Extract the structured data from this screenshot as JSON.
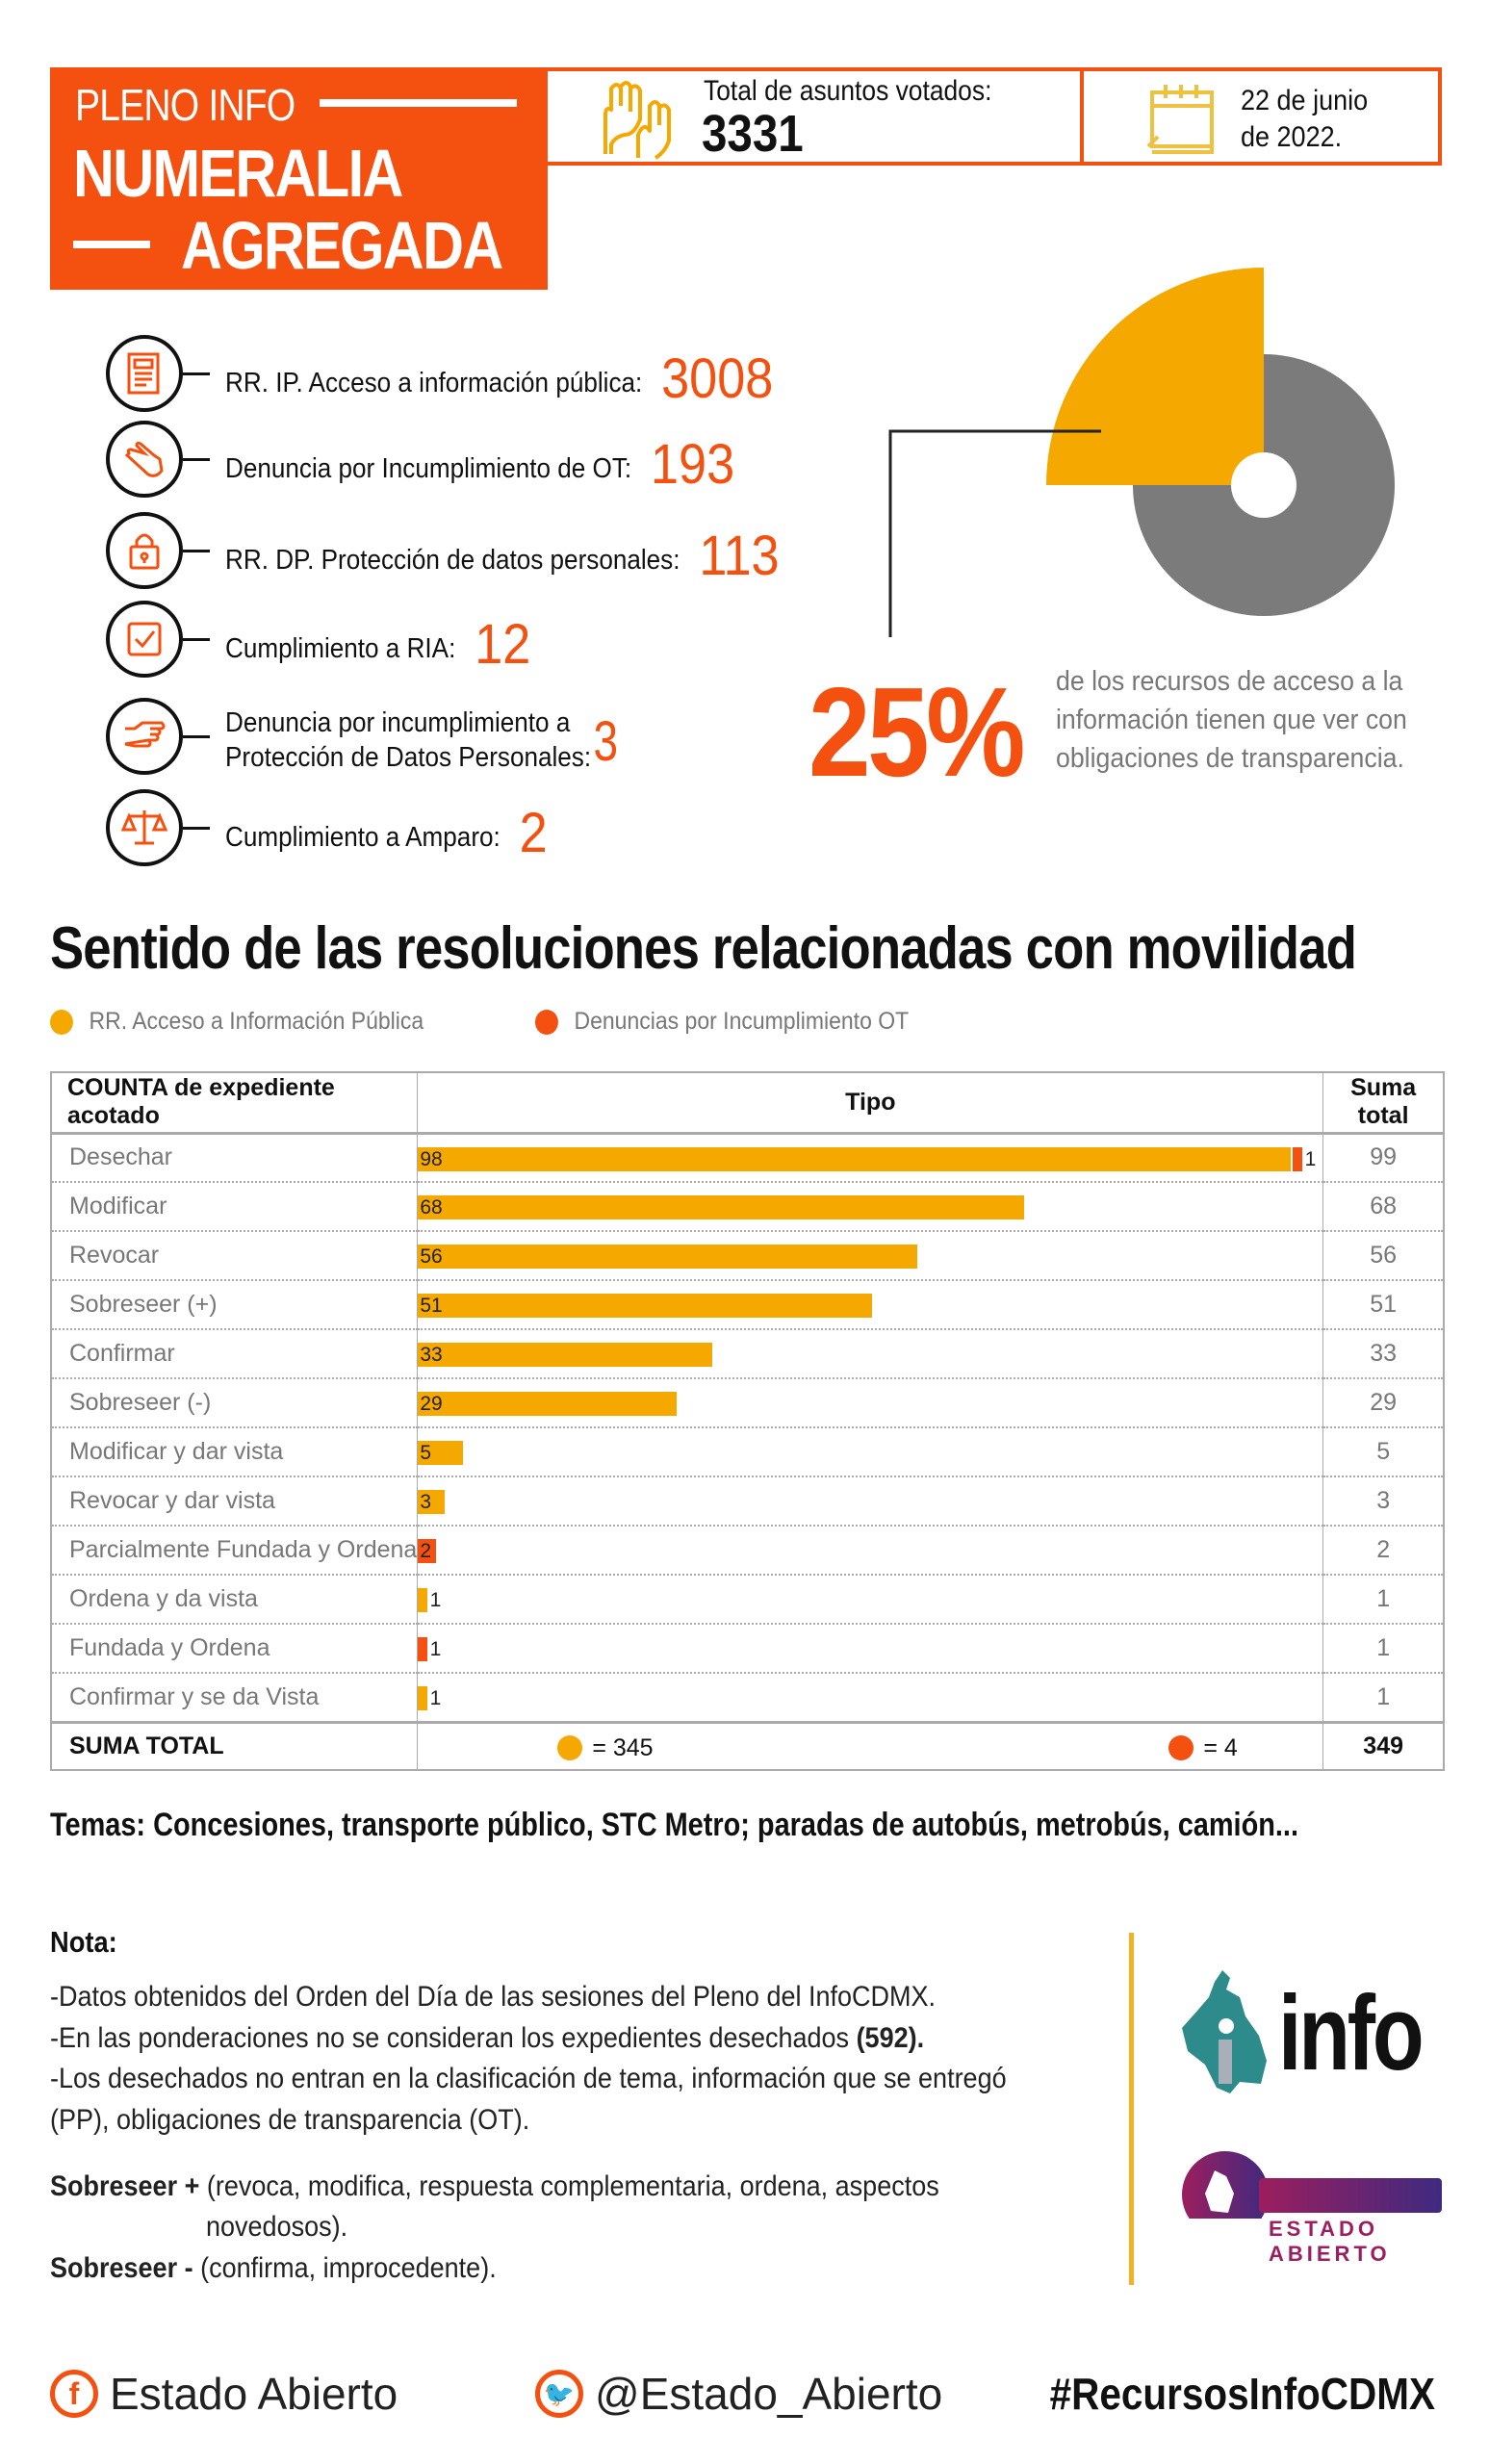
{
  "header": {
    "kicker": "PLENO INFO",
    "title_line1": "NUMERALIA",
    "title_line2": "AGREGADA",
    "total_label": "Total de asuntos votados:",
    "total_value": "3331",
    "date_line1": "22 de junio",
    "date_line2": "de 2022."
  },
  "items": [
    {
      "icon": "document-icon",
      "label": "RR. IP.  Acceso a información pública:",
      "value": "3008"
    },
    {
      "icon": "pointing-hand-icon",
      "label": "Denuncia por Incumplimiento de OT:",
      "value": "193"
    },
    {
      "icon": "lock-icon",
      "label": "RR. DP. Protección de datos personales:",
      "value": "113"
    },
    {
      "icon": "checkbox-icon",
      "label": "Cumplimiento a RIA:",
      "value": "12"
    },
    {
      "icon": "hand-point-icon",
      "label_line1": "Denuncia por incumplimiento a",
      "label_line2": "Protección de Datos Personales:",
      "value": "3"
    },
    {
      "icon": "scales-icon",
      "label": "Cumplimiento a Amparo:",
      "value": "2"
    }
  ],
  "highlight": {
    "percent": "25%",
    "percent_value": 25,
    "text_line1": "de los recursos de acceso a la",
    "text_line2": "información tienen que ver con",
    "text_line3": "obligaciones de transparencia."
  },
  "colors": {
    "orange": "#F4500F",
    "yellow": "#F5A800",
    "gray": "#7B7B7B"
  },
  "chart_data": {
    "type": "table",
    "title": "Sentido de las resoluciones relacionadas con movilidad",
    "columns": [
      "COUNTA de expediente acotado",
      "Tipo",
      "Suma total"
    ],
    "legend": [
      "RR. Acceso a Información Pública",
      "Denuncias por Incumplimiento OT"
    ],
    "legend_placement": "top-left",
    "categories": [
      "Desechar",
      "Modificar",
      "Revocar",
      "Sobreseer (+)",
      "Confirmar",
      "Sobreseer (-)",
      "Modificar y dar vista",
      "Revocar y dar vista",
      "Parcialmente Fundada y Ordena",
      "Ordena y da vista",
      "Fundada y Ordena",
      "Confirmar y se da Vista"
    ],
    "series": [
      {
        "name": "RR. Acceso a Información Pública",
        "color": "#F5A800",
        "values": [
          98,
          68,
          56,
          51,
          33,
          29,
          5,
          3,
          0,
          1,
          0,
          1
        ]
      },
      {
        "name": "Denuncias por Incumplimiento OT",
        "color": "#F4500F",
        "values": [
          1,
          0,
          0,
          0,
          0,
          0,
          0,
          0,
          2,
          0,
          1,
          0
        ]
      }
    ],
    "totals": [
      "99",
      "68",
      "56",
      "51",
      "33",
      "29",
      "5",
      "3",
      "2",
      "1",
      "1",
      "1"
    ],
    "total_label": "SUMA TOTAL",
    "series_totals": [
      "= 345",
      "= 4"
    ],
    "grand_total": "349",
    "xlim": [
      0,
      98
    ]
  },
  "temas": "Temas: Concesiones, transporte público, STC Metro; paradas de autobús, metrobús, camión...",
  "notes": {
    "title": "Nota:",
    "line1": "-Datos obtenidos del Orden del Día de las sesiones del Pleno del InfoCDMX.",
    "line2": "-En las ponderaciones no se consideran los expedientes desechados ",
    "line2_bold": "(592).",
    "line3": "-Los desechados no entran en la clasificación de tema, información que se entregó",
    "line4": "(PP), obligaciones de transparencia (OT).",
    "sob_plus": "Sobreseer +",
    "sob_plus_text1": "(revoca, modifica, respuesta complementaria, ordena, aspectos",
    "sob_plus_text2": "novedosos).",
    "sob_minus": "Sobreseer -",
    "sob_minus_text": "(confirma, improcedente)."
  },
  "logos": {
    "info": "info",
    "estado_abierto": "ESTADO ABIERTO"
  },
  "footer": {
    "facebook": "Estado Abierto",
    "twitter": "@Estado_Abierto",
    "hashtag": "#RecursosInfoCDMX"
  }
}
